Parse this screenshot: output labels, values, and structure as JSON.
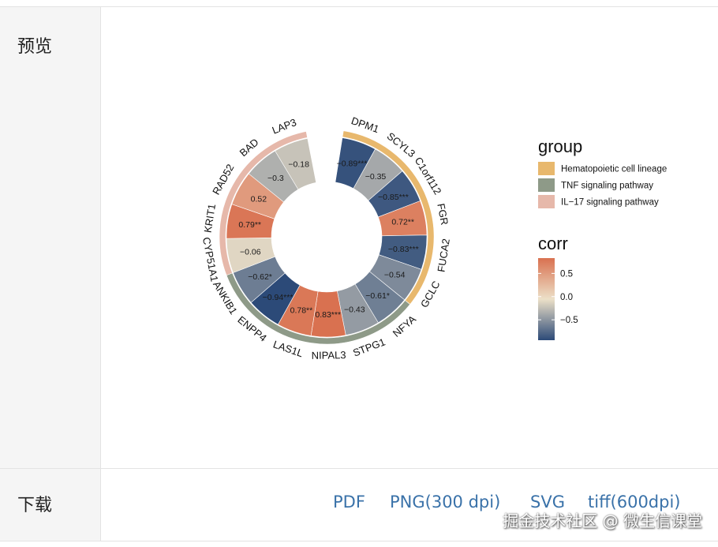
{
  "sections": {
    "preview_label": "预览",
    "download_label": "下载"
  },
  "downloads": [
    {
      "label": "PDF"
    },
    {
      "label": "PNG(300 dpi)"
    },
    {
      "label": "SVG"
    },
    {
      "label": "tiff(600dpi)"
    }
  ],
  "watermark": "掘金技术社区 @ 微生信课堂",
  "chart_data": {
    "type": "circular-heatmap",
    "series_name": "corr",
    "categories": [
      "DPM1",
      "SCYL3",
      "C1orf112",
      "FGR",
      "FUCA2",
      "GCLC",
      "NFYA",
      "STPG1",
      "NIPAL3",
      "LAS1L",
      "ENPP4",
      "ANKIB1",
      "CYP51A1",
      "KRIT1",
      "RAD52",
      "BAD",
      "LAP3"
    ],
    "values": [
      -0.89,
      -0.35,
      -0.85,
      0.72,
      -0.83,
      -0.54,
      -0.61,
      -0.43,
      0.83,
      0.78,
      -0.94,
      -0.62,
      -0.06,
      0.79,
      0.52,
      -0.3,
      -0.18
    ],
    "cell_labels": [
      "−0.89***",
      "−0.35",
      "−0.85***",
      "0.72**",
      "−0.83***",
      "−0.54",
      "−0.61*",
      "−0.43",
      "0.83***",
      "0.78**",
      "−0.94***",
      "−0.62*",
      "−0.06",
      "0.79**",
      "0.52",
      "−0.3",
      "−0.18"
    ],
    "groups_of_categories": [
      0,
      0,
      0,
      0,
      0,
      0,
      1,
      1,
      1,
      1,
      1,
      1,
      2,
      2,
      2,
      2,
      2
    ],
    "group_legend": {
      "title": "group",
      "items": [
        {
          "label": "Hematopoietic cell lineage",
          "color": "#e8b86d"
        },
        {
          "label": "TNF signaling pathway",
          "color": "#8e9a88"
        },
        {
          "label": "IL−17 signaling pathway",
          "color": "#e6b8aa"
        }
      ]
    },
    "color_legend": {
      "title": "corr",
      "ticks": [
        "0.5",
        "0.0",
        "−0.5"
      ],
      "tick_values": [
        0.5,
        0.0,
        -0.5
      ],
      "range": [
        -0.94,
        0.83
      ],
      "colors": {
        "low": "#2c4a78",
        "mid": "#ece0c8",
        "high": "#d97150"
      }
    }
  }
}
